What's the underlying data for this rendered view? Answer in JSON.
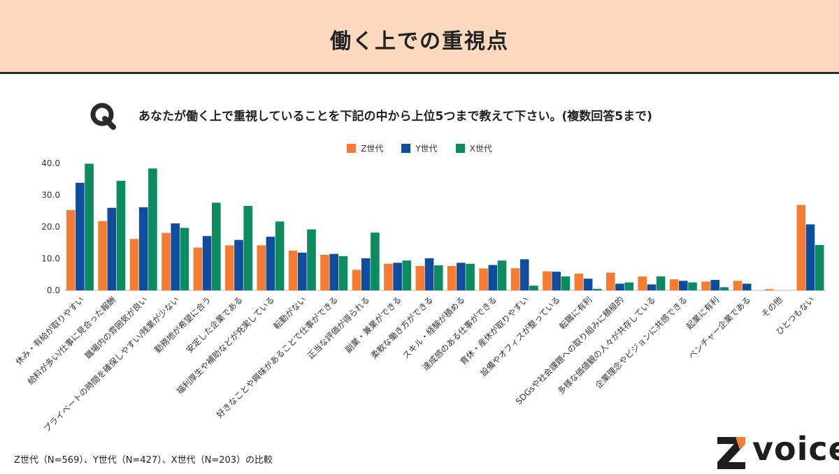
{
  "header": {
    "title": "働く上での重視点"
  },
  "question": {
    "icon": "q-icon",
    "text": "あなたが働く上で重視していることを下記の中から上位5つまで教えて下さい。(複数回答5まで)"
  },
  "footnote": "Z世代（N=569）、Y世代（N=427）、X世代（N=203）の比較",
  "logo": {
    "text": "voice",
    "mark": "Z"
  },
  "colors": {
    "header_bg": "#fdd9c0",
    "z": "#f47c33",
    "y": "#0f4c9c",
    "x": "#0e8a5f"
  },
  "chart_data": {
    "type": "bar",
    "ylim": [
      0,
      40
    ],
    "yticks": [
      "0.0",
      "10.0",
      "20.0",
      "30.0",
      "40.0"
    ],
    "legend_position": "top-center",
    "grid": false,
    "categories": [
      "休み・有給が取りやすい",
      "給料が多い/仕事に見合った報酬",
      "職場内の雰囲気が良い",
      "プライベートの時間を確保しやすい/残業が少ない",
      "勤務地が希望に合う",
      "安定した企業である",
      "福利厚生や補助などが充実している",
      "転勤がない",
      "好きなことや興味があることで仕事ができる",
      "正当な評価が得られる",
      "副業・兼業ができる",
      "柔軟な働き方ができる",
      "スキル・経験が積める",
      "達成感のある仕事ができる",
      "育休・産休が取りやすい",
      "設備やオフィスが整っている",
      "転職に有利",
      "SDGsや社会課題への取り組みに積極的",
      "多様な価値観の人々が共存している",
      "企業理念やビジョンに共感できる",
      "起業に有利",
      "ベンチャー企業である",
      "その他",
      "ひとつもない"
    ],
    "series": [
      {
        "name": "Z世代",
        "values": [
          25.3,
          21.8,
          16.2,
          18.1,
          13.5,
          14.2,
          14.2,
          12.5,
          11.2,
          6.5,
          8.4,
          7.7,
          7.7,
          6.9,
          7.0,
          6.0,
          5.3,
          5.6,
          4.4,
          3.5,
          2.8,
          3.0,
          0.4,
          26.9
        ]
      },
      {
        "name": "Y世代",
        "values": [
          33.9,
          26.0,
          26.2,
          21.1,
          17.1,
          15.9,
          16.9,
          11.9,
          11.5,
          10.1,
          8.7,
          10.1,
          8.7,
          8.0,
          9.8,
          5.9,
          3.7,
          2.1,
          1.9,
          3.0,
          3.3,
          2.1,
          0.0,
          20.8
        ]
      },
      {
        "name": "X世代",
        "values": [
          39.9,
          34.5,
          38.4,
          19.7,
          27.6,
          26.6,
          21.7,
          19.2,
          10.8,
          18.2,
          9.4,
          7.9,
          8.4,
          9.4,
          1.5,
          4.4,
          0.5,
          2.5,
          4.4,
          2.5,
          1.0,
          0.0,
          0.0,
          14.3
        ]
      }
    ]
  }
}
